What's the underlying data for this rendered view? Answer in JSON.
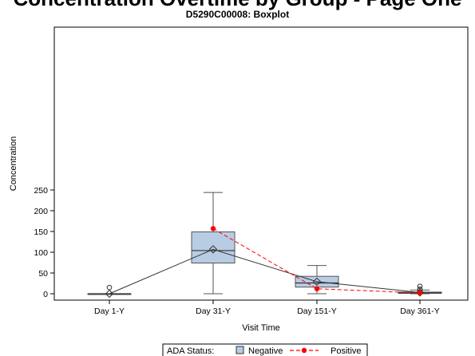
{
  "header": {
    "cut_title": "Concentration Overtime by Group - Page One",
    "title": "D5290C00008: Boxplot"
  },
  "chart_data": {
    "type": "box",
    "title": "D5290C00008: Boxplot",
    "xlabel": "Visit Time",
    "ylabel": "Concentration",
    "ylim": [
      -3,
      253
    ],
    "yticks": [
      0,
      50,
      100,
      150,
      200,
      250
    ],
    "categories": [
      "Day 1-Y",
      "Day 31-Y",
      "Day 151-Y",
      "Day 361-Y"
    ],
    "boxes": [
      {
        "category": "Day 1-Y",
        "min": 0,
        "q1": 0,
        "median": 0,
        "q3": 0,
        "max": 0,
        "mean": 0,
        "outliers": [
          15
        ]
      },
      {
        "category": "Day 31-Y",
        "min": 0,
        "q1": 74,
        "median": 104,
        "q3": 149,
        "max": 244,
        "mean": 107,
        "outliers": []
      },
      {
        "category": "Day 151-Y",
        "min": 0,
        "q1": 16,
        "median": 26,
        "q3": 42,
        "max": 68,
        "mean": 29,
        "outliers": []
      },
      {
        "category": "Day 361-Y",
        "min": 0,
        "q1": 1,
        "median": 2,
        "q3": 4,
        "max": 9,
        "mean": 3,
        "outliers": [
          10,
          11,
          18
        ]
      }
    ],
    "series": [
      {
        "name": "Negative",
        "style": "box + solid mean line",
        "color": "#b8cce4",
        "line_color": "#333333",
        "values": [
          0,
          107,
          29,
          3
        ]
      },
      {
        "name": "Positive",
        "style": "dashed line with dot markers",
        "color": "#ff0000",
        "x": [
          "Day 31-Y",
          "Day 151-Y",
          "Day 361-Y"
        ],
        "values": [
          157,
          12,
          2
        ]
      }
    ],
    "legend": {
      "title": "ADA Status:",
      "placement": "bottom-center",
      "entries": [
        "Negative",
        "Positive"
      ]
    },
    "grid": false
  }
}
